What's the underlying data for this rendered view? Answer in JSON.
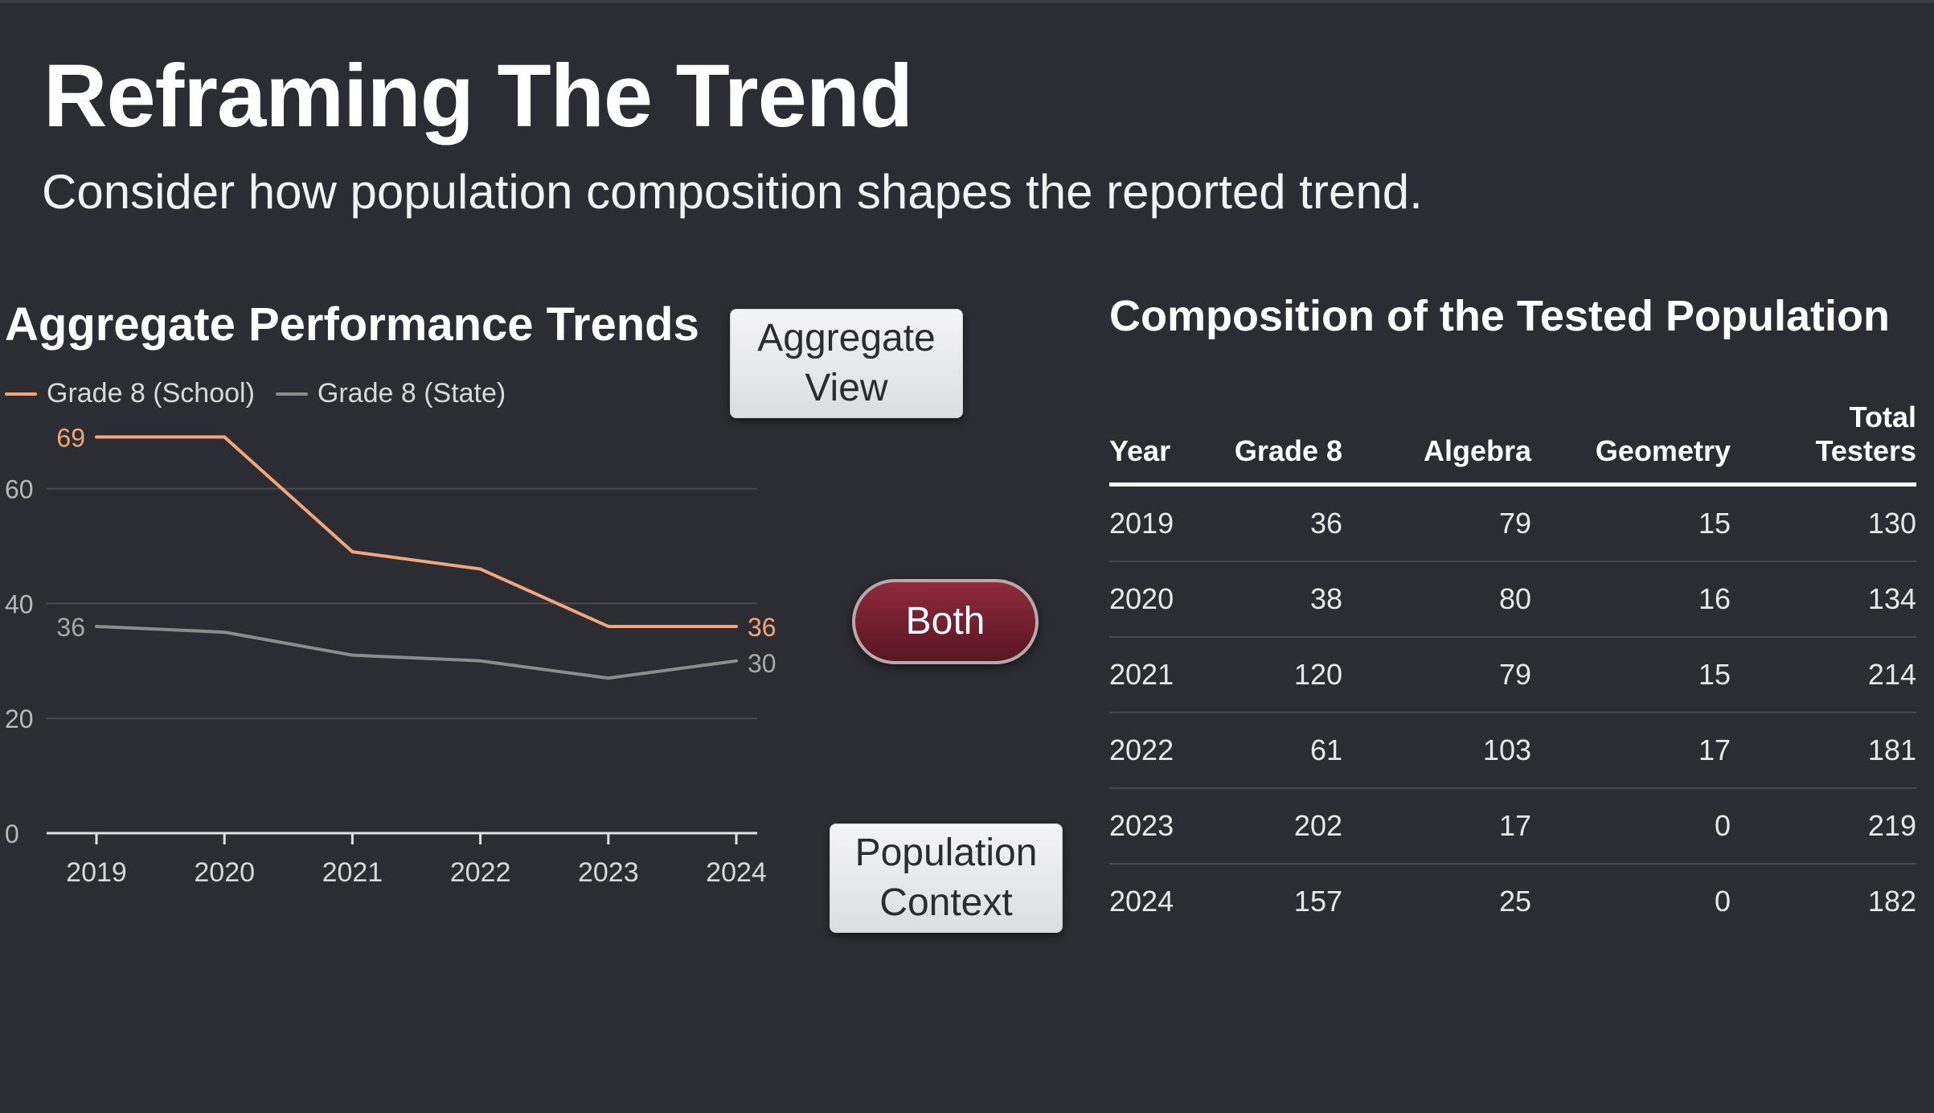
{
  "header": {
    "title": "Reframing The Trend",
    "subtitle": "Consider how population composition shapes the reported trend."
  },
  "chart": {
    "title": "Aggregate Performance Trends"
  },
  "chart_data": {
    "type": "line",
    "title": "Aggregate Performance Trends",
    "xlabel": "",
    "ylabel": "",
    "categories": [
      "2019",
      "2020",
      "2021",
      "2022",
      "2023",
      "2024"
    ],
    "ylim": [
      0,
      75
    ],
    "yticks": [
      0,
      20,
      40,
      60
    ],
    "grid": true,
    "legend_position": "top-left",
    "series": [
      {
        "name": "Grade 8 (School)",
        "color": "#f2a67c",
        "values": [
          69,
          69,
          49,
          46,
          36,
          36
        ],
        "labels": [
          "69",
          "",
          "",
          "",
          "",
          "36"
        ]
      },
      {
        "name": "Grade 8 (State)",
        "color": "#8c8c8c",
        "values": [
          36,
          35,
          31,
          30,
          27,
          30
        ],
        "labels": [
          "36",
          "",
          "",
          "",
          "",
          "30"
        ]
      }
    ]
  },
  "buttons": {
    "aggregate_line1": "Aggregate",
    "aggregate_line2": "View",
    "both": "Both",
    "population_line1": "Population",
    "population_line2": "Context"
  },
  "table": {
    "title": "Composition of the Tested Population",
    "headers": [
      "Year",
      "Grade 8",
      "Algebra",
      "Geometry",
      "Total Testers"
    ],
    "header_total_line1": "Total",
    "header_total_line2": "Testers",
    "rows": [
      [
        "2019",
        "36",
        "79",
        "15",
        "130"
      ],
      [
        "2020",
        "38",
        "80",
        "16",
        "134"
      ],
      [
        "2021",
        "120",
        "79",
        "15",
        "214"
      ],
      [
        "2022",
        "61",
        "103",
        "17",
        "181"
      ],
      [
        "2023",
        "202",
        "17",
        "0",
        "219"
      ],
      [
        "2024",
        "157",
        "25",
        "0",
        "182"
      ]
    ]
  },
  "colors": {
    "background": "#2c2d32",
    "school_line": "#f2a67c",
    "state_line": "#8c8c8c",
    "both_button": "#7a2233"
  }
}
